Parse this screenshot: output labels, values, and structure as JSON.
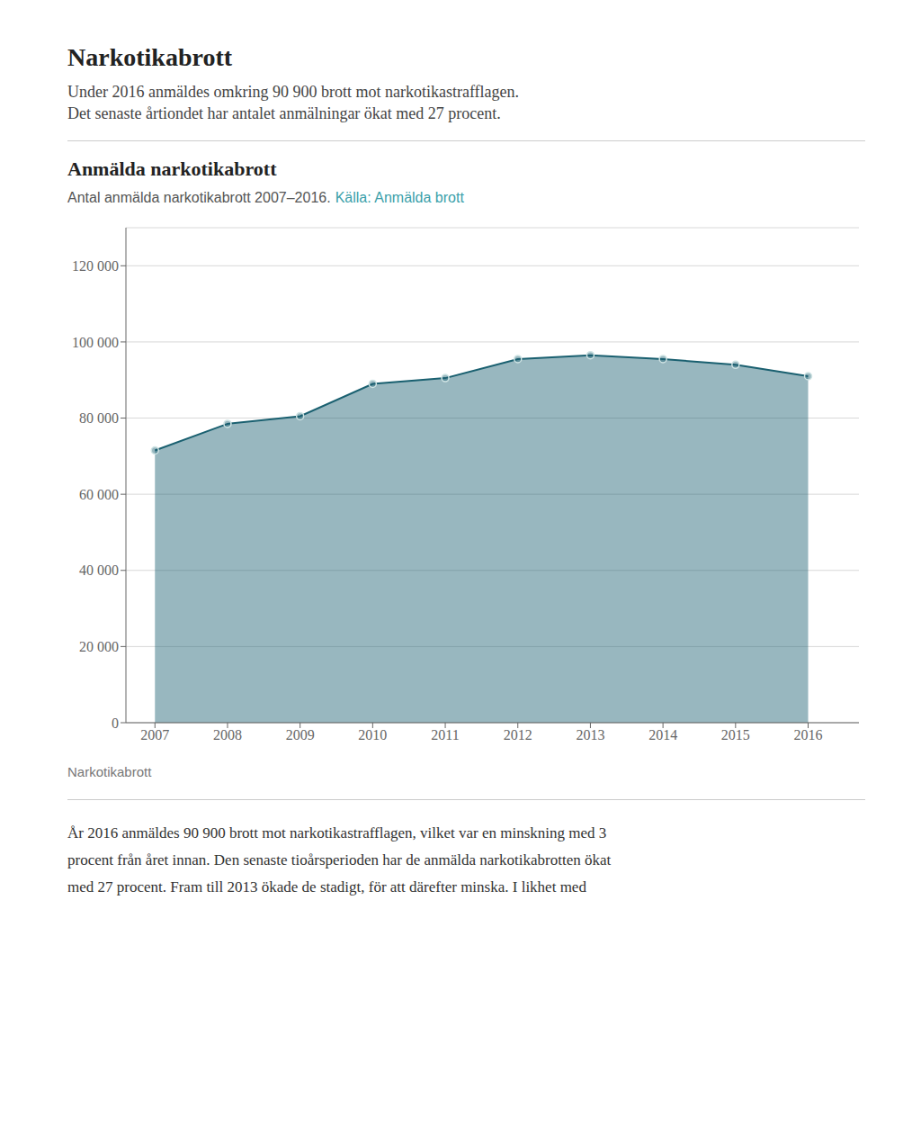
{
  "page": {
    "title": "Narkotikabrott",
    "intro": [
      "Under 2016 anmäldes omkring 90 900 brott mot narkotikastrafflagen.",
      "Det senaste årtiondet har antalet anmälningar ökat med 27 procent."
    ],
    "footer": [
      "År 2016 anmäldes 90 900 brott mot narkotikastrafflagen, vilket var en minskning med 3",
      "procent från året innan. Den senaste tioårsperioden har de anmälda narkotikabrotten ökat",
      "med 27 procent. Fram till 2013 ökade de stadigt, för att därefter minska. I likhet med"
    ]
  },
  "chart_data": {
    "type": "area",
    "title": "Anmälda narkotikabrott",
    "subtitle": "Antal anmälda narkotikabrott 2007–2016.",
    "source": "Källa: Anmälda brott",
    "xlabel": "Narkotikabrott",
    "x": [
      2007,
      2008,
      2009,
      2010,
      2011,
      2012,
      2013,
      2014,
      2015,
      2016
    ],
    "values": [
      71500,
      78500,
      80500,
      89000,
      90500,
      95500,
      96500,
      95500,
      94000,
      91000
    ],
    "color": "#1a6070",
    "marker": "circle",
    "xlim": [
      2006.6,
      2016.7
    ],
    "xticks": [
      2007,
      2008,
      2009,
      2010,
      2011,
      2012,
      2013,
      2014,
      2015,
      2016
    ],
    "ylim": [
      0,
      130000
    ],
    "yticks": [
      0,
      {
        "value": 20000,
        "label": "20 000"
      },
      {
        "value": 40000,
        "label": "40 000"
      },
      {
        "value": 60000,
        "label": "60 000"
      },
      {
        "value": 80000,
        "label": "80 000"
      },
      {
        "value": 100000,
        "label": "100 000"
      },
      {
        "value": 120000,
        "label": "120 000"
      }
    ],
    "grid": true
  }
}
